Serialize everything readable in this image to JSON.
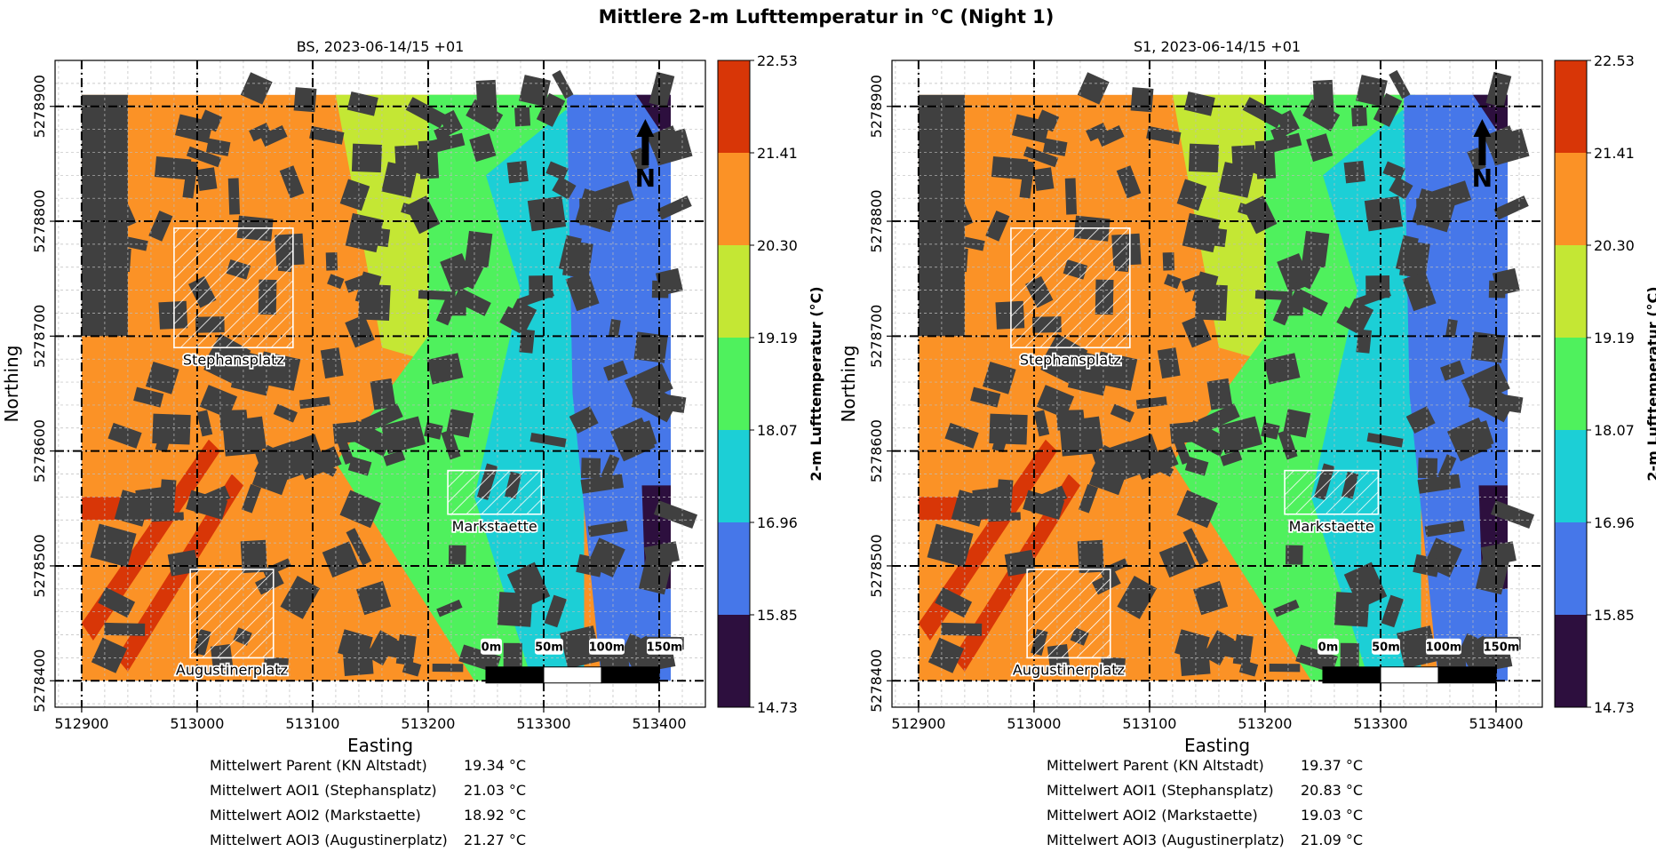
{
  "figure_title": "Mittlere 2-m Lufttemperatur in °C (Night 1)",
  "colors": {
    "levels": [
      "#2d0f3e",
      "#4677e9",
      "#1ccfd6",
      "#4ff15d",
      "#c4e734",
      "#fb9226",
      "#d83607"
    ],
    "building": "#404040",
    "aoi_outline": "#ffffff",
    "axis": "#000000"
  },
  "chart_data": [
    {
      "type": "heatmap",
      "title": "BS, 2023-06-14/15 +01",
      "xlabel": "Easting",
      "ylabel": "Northing",
      "xlim": [
        512877,
        513440
      ],
      "ylim": [
        5278377,
        5278940
      ],
      "xticks": [
        512900,
        513000,
        513100,
        513200,
        513300,
        513400
      ],
      "yticks": [
        5278400,
        5278500,
        5278600,
        5278700,
        5278800,
        5278900
      ],
      "colorbar": {
        "label": "2-m Lufttemperatur (°C)",
        "levels": [
          14.73,
          15.85,
          16.96,
          18.07,
          19.19,
          20.3,
          21.41,
          22.53
        ]
      },
      "aois": [
        {
          "name": "Stephansplatz",
          "x": [
            512980,
            513083
          ],
          "y": [
            5278690,
            5278794
          ]
        },
        {
          "name": "Markstaette",
          "x": [
            513217,
            513298
          ],
          "y": [
            5278545,
            5278583
          ]
        },
        {
          "name": "Augustinerplatz",
          "x": [
            512994,
            513066
          ],
          "y": [
            5278420,
            5278497
          ]
        }
      ],
      "scalebar": {
        "labels": [
          "0m",
          "50m",
          "100m",
          "150m"
        ]
      },
      "north_arrow": "N",
      "stats": [
        {
          "label": "Mittelwert Parent (KN Altstadt)",
          "value": "19.34 °C"
        },
        {
          "label": "Mittelwert AOI1 (Stephansplatz)",
          "value": "21.03 °C"
        },
        {
          "label": "Mittelwert AOI2 (Markstaette)",
          "value": "18.92 °C"
        },
        {
          "label": "Mittelwert AOI3 (Augustinerplatz)",
          "value": "21.27 °C"
        }
      ]
    },
    {
      "type": "heatmap",
      "title": "S1, 2023-06-14/15 +01",
      "xlabel": "Easting",
      "ylabel": "Northing",
      "xlim": [
        512877,
        513440
      ],
      "ylim": [
        5278377,
        5278940
      ],
      "xticks": [
        512900,
        513000,
        513100,
        513200,
        513300,
        513400
      ],
      "yticks": [
        5278400,
        5278500,
        5278600,
        5278700,
        5278800,
        5278900
      ],
      "colorbar": {
        "label": "2-m Lufttemperatur (°C)",
        "levels": [
          14.73,
          15.85,
          16.96,
          18.07,
          19.19,
          20.3,
          21.41,
          22.53
        ]
      },
      "aois": [
        {
          "name": "Stephansplatz",
          "x": [
            512980,
            513083
          ],
          "y": [
            5278690,
            5278794
          ]
        },
        {
          "name": "Markstaette",
          "x": [
            513217,
            513298
          ],
          "y": [
            5278545,
            5278583
          ]
        },
        {
          "name": "Augustinerplatz",
          "x": [
            512994,
            513066
          ],
          "y": [
            5278420,
            5278497
          ]
        }
      ],
      "scalebar": {
        "labels": [
          "0m",
          "50m",
          "100m",
          "150m"
        ]
      },
      "north_arrow": "N",
      "stats": [
        {
          "label": "Mittelwert Parent (KN Altstadt)",
          "value": "19.37 °C"
        },
        {
          "label": "Mittelwert AOI1 (Stephansplatz)",
          "value": "20.83 °C"
        },
        {
          "label": "Mittelwert AOI2 (Markstaette)",
          "value": "19.03 °C"
        },
        {
          "label": "Mittelwert AOI3 (Augustinerplatz)",
          "value": "21.09 °C"
        }
      ]
    }
  ]
}
